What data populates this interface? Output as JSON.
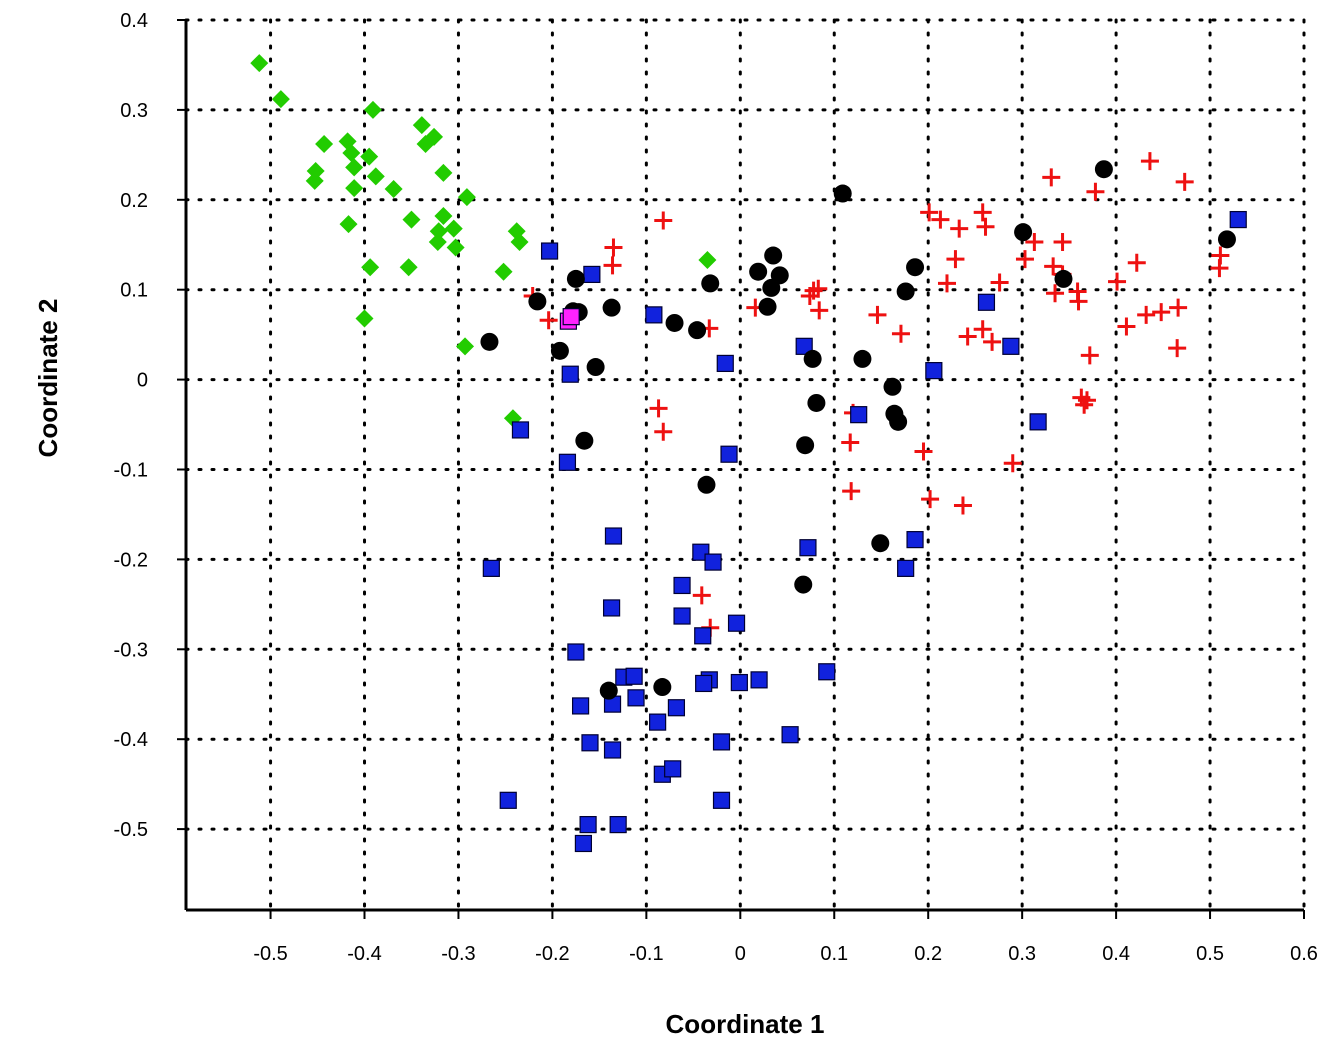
{
  "chart_data": {
    "type": "scatter",
    "title": "",
    "xlabel": "Coordinate 1",
    "ylabel": "Coordinate 2",
    "xlim": [
      -0.59,
      0.6
    ],
    "ylim": [
      -0.59,
      0.4
    ],
    "grid": true,
    "x_ticks": [
      -0.5,
      -0.4,
      -0.3,
      -0.2,
      -0.1,
      0,
      0.1,
      0.2,
      0.3,
      0.4,
      0.5,
      0.6
    ],
    "x_tick_labels": [
      "-0.5",
      "-0.4",
      "-0.3",
      "-0.2",
      "-0.1",
      "0",
      "0.1",
      "0.2",
      "0.3",
      "0.4",
      "0.5",
      "0.6"
    ],
    "y_ticks": [
      -0.5,
      -0.4,
      -0.3,
      -0.2,
      -0.1,
      0,
      0.1,
      0.2,
      0.3,
      0.4
    ],
    "y_tick_labels": [
      "-0.5",
      "-0.4",
      "-0.3",
      "-0.2",
      "-0.1",
      "0",
      "0.1",
      "0.2",
      "0.3",
      "0.4"
    ],
    "series": [
      {
        "marker": "diamond",
        "color": "#22cc00",
        "points": [
          [
            -0.512,
            0.352
          ],
          [
            -0.489,
            0.312
          ],
          [
            -0.443,
            0.262
          ],
          [
            -0.452,
            0.232
          ],
          [
            -0.453,
            0.221
          ],
          [
            -0.418,
            0.265
          ],
          [
            -0.414,
            0.252
          ],
          [
            -0.411,
            0.236
          ],
          [
            -0.411,
            0.213
          ],
          [
            -0.417,
            0.173
          ],
          [
            -0.395,
            0.248
          ],
          [
            -0.388,
            0.226
          ],
          [
            -0.391,
            0.3
          ],
          [
            -0.369,
            0.212
          ],
          [
            -0.339,
            0.283
          ],
          [
            -0.335,
            0.262
          ],
          [
            -0.326,
            0.27
          ],
          [
            -0.35,
            0.178
          ],
          [
            -0.353,
            0.125
          ],
          [
            -0.394,
            0.125
          ],
          [
            -0.4,
            0.068
          ],
          [
            -0.316,
            0.23
          ],
          [
            -0.316,
            0.182
          ],
          [
            -0.305,
            0.168
          ],
          [
            -0.321,
            0.165
          ],
          [
            -0.322,
            0.153
          ],
          [
            -0.303,
            0.147
          ],
          [
            -0.291,
            0.203
          ],
          [
            -0.238,
            0.165
          ],
          [
            -0.235,
            0.153
          ],
          [
            -0.252,
            0.12
          ],
          [
            -0.293,
            0.037
          ],
          [
            -0.035,
            0.133
          ],
          [
            -0.242,
            -0.043
          ]
        ]
      },
      {
        "marker": "plus",
        "color": "#ee1111",
        "points": [
          [
            -0.135,
            0.147
          ],
          [
            -0.136,
            0.127
          ],
          [
            -0.082,
            0.177
          ],
          [
            -0.221,
            0.093
          ],
          [
            -0.204,
            0.066
          ],
          [
            0.078,
            0.099
          ],
          [
            0.074,
            0.093
          ],
          [
            0.083,
            0.101
          ],
          [
            0.084,
            0.077
          ],
          [
            0.016,
            0.08
          ],
          [
            -0.033,
            0.057
          ],
          [
            -0.087,
            -0.032
          ],
          [
            -0.082,
            -0.058
          ],
          [
            0.146,
            0.072
          ],
          [
            0.171,
            0.051
          ],
          [
            0.12,
            -0.037
          ],
          [
            0.117,
            -0.07
          ],
          [
            0.118,
            -0.124
          ],
          [
            0.195,
            -0.08
          ],
          [
            0.202,
            -0.133
          ],
          [
            0.237,
            -0.14
          ],
          [
            0.29,
            -0.093
          ],
          [
            0.201,
            0.186
          ],
          [
            0.213,
            0.178
          ],
          [
            0.233,
            0.168
          ],
          [
            0.258,
            0.186
          ],
          [
            0.261,
            0.17
          ],
          [
            0.229,
            0.134
          ],
          [
            0.22,
            0.107
          ],
          [
            0.242,
            0.048
          ],
          [
            0.258,
            0.056
          ],
          [
            0.268,
            0.042
          ],
          [
            0.276,
            0.108
          ],
          [
            0.313,
            0.153
          ],
          [
            0.303,
            0.134
          ],
          [
            0.331,
            0.225
          ],
          [
            0.333,
            0.126
          ],
          [
            0.343,
            0.153
          ],
          [
            0.343,
            0.117
          ],
          [
            0.335,
            0.096
          ],
          [
            0.359,
            0.098
          ],
          [
            0.36,
            0.087
          ],
          [
            0.378,
            0.209
          ],
          [
            0.372,
            0.027
          ],
          [
            0.363,
            -0.02
          ],
          [
            0.369,
            -0.023
          ],
          [
            0.366,
            -0.028
          ],
          [
            0.401,
            0.109
          ],
          [
            0.411,
            0.059
          ],
          [
            0.422,
            0.13
          ],
          [
            0.432,
            0.072
          ],
          [
            0.436,
            0.243
          ],
          [
            0.448,
            0.075
          ],
          [
            0.466,
            0.08
          ],
          [
            0.473,
            0.22
          ],
          [
            0.465,
            0.035
          ],
          [
            0.511,
            0.138
          ],
          [
            0.51,
            0.124
          ],
          [
            -0.041,
            -0.24
          ],
          [
            -0.032,
            -0.276
          ]
        ]
      },
      {
        "marker": "square",
        "color": "#1122dd",
        "points": [
          [
            -0.203,
            0.143
          ],
          [
            -0.158,
            0.117
          ],
          [
            -0.092,
            0.072
          ],
          [
            -0.181,
            0.006
          ],
          [
            -0.016,
            0.018
          ],
          [
            -0.234,
            -0.056
          ],
          [
            -0.184,
            -0.092
          ],
          [
            -0.012,
            -0.083
          ],
          [
            -0.135,
            -0.174
          ],
          [
            -0.265,
            -0.21
          ],
          [
            -0.042,
            -0.192
          ],
          [
            -0.029,
            -0.203
          ],
          [
            -0.062,
            -0.229
          ],
          [
            -0.137,
            -0.254
          ],
          [
            -0.062,
            -0.263
          ],
          [
            -0.04,
            -0.285
          ],
          [
            -0.004,
            -0.271
          ],
          [
            -0.175,
            -0.303
          ],
          [
            -0.124,
            -0.331
          ],
          [
            -0.113,
            -0.33
          ],
          [
            -0.136,
            -0.361
          ],
          [
            -0.17,
            -0.363
          ],
          [
            -0.111,
            -0.354
          ],
          [
            -0.068,
            -0.365
          ],
          [
            -0.033,
            -0.334
          ],
          [
            -0.039,
            -0.338
          ],
          [
            -0.001,
            -0.337
          ],
          [
            0.02,
            -0.334
          ],
          [
            0.092,
            -0.325
          ],
          [
            -0.16,
            -0.404
          ],
          [
            -0.136,
            -0.412
          ],
          [
            -0.088,
            -0.381
          ],
          [
            -0.083,
            -0.439
          ],
          [
            -0.072,
            -0.433
          ],
          [
            -0.02,
            -0.403
          ],
          [
            0.053,
            -0.395
          ],
          [
            -0.247,
            -0.468
          ],
          [
            -0.02,
            -0.468
          ],
          [
            -0.162,
            -0.495
          ],
          [
            -0.13,
            -0.495
          ],
          [
            -0.167,
            -0.516
          ],
          [
            0.068,
            0.037
          ],
          [
            0.072,
            -0.187
          ],
          [
            0.126,
            -0.039
          ],
          [
            0.176,
            -0.21
          ],
          [
            0.186,
            -0.178
          ],
          [
            0.206,
            0.01
          ],
          [
            0.262,
            0.086
          ],
          [
            0.288,
            0.037
          ],
          [
            0.317,
            -0.047
          ],
          [
            0.53,
            0.178
          ]
        ]
      },
      {
        "marker": "circle",
        "color": "#000000",
        "points": [
          [
            -0.216,
            0.087
          ],
          [
            -0.178,
            0.076
          ],
          [
            -0.172,
            0.075
          ],
          [
            -0.175,
            0.112
          ],
          [
            -0.137,
            0.08
          ],
          [
            -0.267,
            0.042
          ],
          [
            -0.192,
            0.032
          ],
          [
            -0.154,
            0.014
          ],
          [
            -0.166,
            -0.068
          ],
          [
            -0.07,
            0.063
          ],
          [
            -0.046,
            0.055
          ],
          [
            -0.032,
            0.107
          ],
          [
            0.019,
            0.12
          ],
          [
            0.035,
            0.138
          ],
          [
            0.042,
            0.116
          ],
          [
            0.033,
            0.102
          ],
          [
            0.029,
            0.081
          ],
          [
            0.109,
            0.207
          ],
          [
            0.077,
            0.023
          ],
          [
            0.081,
            -0.026
          ],
          [
            0.069,
            -0.073
          ],
          [
            0.13,
            0.023
          ],
          [
            0.162,
            -0.008
          ],
          [
            0.164,
            -0.038
          ],
          [
            0.168,
            -0.047
          ],
          [
            0.176,
            0.098
          ],
          [
            0.186,
            0.125
          ],
          [
            -0.036,
            -0.117
          ],
          [
            0.149,
            -0.182
          ],
          [
            0.067,
            -0.228
          ],
          [
            0.301,
            0.164
          ],
          [
            0.344,
            0.112
          ],
          [
            0.387,
            0.234
          ],
          [
            0.518,
            0.156
          ],
          [
            -0.14,
            -0.346
          ],
          [
            -0.083,
            -0.342
          ]
        ]
      },
      {
        "marker": "square",
        "color": "#ff22ff",
        "points": [
          [
            -0.183,
            0.065
          ],
          [
            -0.18,
            0.07
          ]
        ]
      }
    ]
  }
}
